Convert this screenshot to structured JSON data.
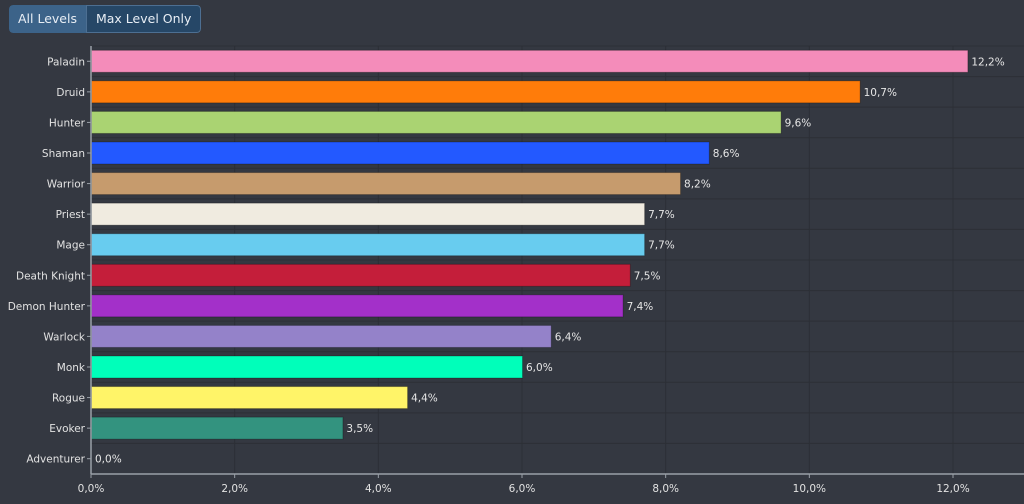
{
  "toolbar": {
    "buttons": [
      {
        "label": "All Levels",
        "active": false
      },
      {
        "label": "Max Level Only",
        "active": true
      }
    ]
  },
  "chart_data": {
    "type": "bar",
    "orientation": "horizontal",
    "title": "",
    "xlabel": "",
    "ylabel": "",
    "categories": [
      "Paladin",
      "Druid",
      "Hunter",
      "Shaman",
      "Warrior",
      "Priest",
      "Mage",
      "Death Knight",
      "Demon Hunter",
      "Warlock",
      "Monk",
      "Rogue",
      "Evoker",
      "Adventurer"
    ],
    "values": [
      12.2,
      10.7,
      9.6,
      8.6,
      8.2,
      7.7,
      7.7,
      7.5,
      7.4,
      6.4,
      6.0,
      4.4,
      3.5,
      0.0
    ],
    "value_labels": [
      "12,2%",
      "10,7%",
      "9,6%",
      "8,6%",
      "8,2%",
      "7,7%",
      "7,7%",
      "7,5%",
      "7,4%",
      "6,4%",
      "6,0%",
      "4,4%",
      "3,5%",
      "0,0%"
    ],
    "colors": [
      "#f48cba",
      "#ff7c0a",
      "#aad372",
      "#2359ff",
      "#c69b6d",
      "#f0ebe0",
      "#68ccef",
      "#c41e3a",
      "#a330c9",
      "#9482c9",
      "#00ffba",
      "#fff468",
      "#33937f",
      "#888888"
    ],
    "xlim": [
      0,
      13
    ],
    "xticks": [
      0,
      2,
      4,
      6,
      8,
      10,
      12
    ],
    "xtick_labels": [
      "0,0%",
      "2,0%",
      "4,0%",
      "6,0%",
      "8,0%",
      "10,0%",
      "12,0%"
    ],
    "grid": true,
    "legend": "none"
  }
}
